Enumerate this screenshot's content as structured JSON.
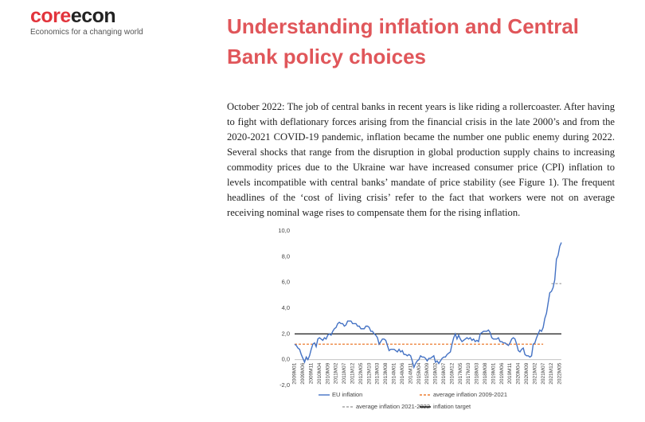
{
  "header": {
    "logo": {
      "part1": "core",
      "part2": "econ"
    },
    "tagline": "Economics for a changing world"
  },
  "article": {
    "title": "Understanding inflation and Central Bank policy choices",
    "paragraph": "October 2022: The job of central banks in recent years is like riding a rollercoaster. After having to fight with deflationary forces arising from the financial crisis in the late 2000’s and from the 2020-2021 COVID-19 pandemic, inflation became the number one public enemy during 2022. Several shocks that range from the disruption in global production supply chains to increasing commodity prices due to the Ukraine war have increased consumer price (CPI) inflation to levels incompatible with central banks’ mandate of price stability (see Figure 1). The frequent headlines of the ‘cost of living crisis’ refer to the fact that workers were not on average receiving nominal wage rises to compensate them for the rising inflation."
  },
  "chart_data": {
    "type": "line",
    "categories": [
      "2009M01",
      null,
      null,
      null,
      null,
      "2009M06",
      null,
      null,
      null,
      null,
      "2009M11",
      null,
      null,
      null,
      null,
      "2010M04",
      null,
      null,
      null,
      null,
      "2010M09",
      null,
      null,
      null,
      null,
      "2011M02",
      null,
      null,
      null,
      null,
      "2011M07",
      null,
      null,
      null,
      null,
      "2011M12",
      null,
      null,
      null,
      null,
      "2012M05",
      null,
      null,
      null,
      null,
      "2012M10",
      null,
      null,
      null,
      null,
      "2013M03",
      null,
      null,
      null,
      null,
      "2013M08",
      null,
      null,
      null,
      null,
      "2014M01",
      null,
      null,
      null,
      null,
      "2014M06",
      null,
      null,
      null,
      null,
      "2014M11",
      null,
      null,
      null,
      null,
      "2015M04",
      null,
      null,
      null,
      null,
      "2015M09",
      null,
      null,
      null,
      null,
      "2016M02",
      null,
      null,
      null,
      null,
      "2016M07",
      null,
      null,
      null,
      null,
      "2016M12",
      null,
      null,
      null,
      null,
      "2017M05",
      null,
      null,
      null,
      null,
      "2017M10",
      null,
      null,
      null,
      null,
      "2018M03",
      null,
      null,
      null,
      null,
      "2018M08",
      null,
      null,
      null,
      null,
      "2019M01",
      null,
      null,
      null,
      null,
      "2019M06",
      null,
      null,
      null,
      null,
      "2019M11",
      null,
      null,
      null,
      null,
      "2020M04",
      null,
      null,
      null,
      null,
      "2020M09",
      null,
      null,
      null,
      null,
      "2021M02",
      null,
      null,
      null,
      null,
      "2021M07",
      null,
      null,
      null,
      null,
      "2021M12",
      null,
      null,
      null,
      null,
      "2022M05",
      null
    ],
    "series": [
      {
        "name": "EU inflation",
        "color": "#4472c4",
        "values": [
          1.2,
          1.1,
          0.9,
          0.8,
          0.4,
          0.1,
          -0.2,
          0.2,
          0.0,
          0.3,
          0.8,
          1.2,
          1.3,
          1.0,
          1.6,
          1.7,
          1.6,
          1.5,
          1.7,
          1.6,
          1.9,
          2.0,
          1.9,
          2.2,
          2.4,
          2.5,
          2.8,
          2.9,
          2.8,
          2.8,
          2.6,
          2.7,
          3.0,
          3.0,
          3.0,
          2.8,
          2.8,
          2.8,
          2.6,
          2.6,
          2.4,
          2.4,
          2.4,
          2.6,
          2.6,
          2.5,
          2.2,
          2.2,
          2.0,
          1.9,
          1.7,
          1.2,
          1.4,
          1.6,
          1.6,
          1.5,
          1.1,
          0.7,
          0.8,
          0.8,
          0.8,
          0.7,
          0.6,
          0.8,
          0.6,
          0.7,
          0.4,
          0.4,
          0.3,
          0.4,
          0.3,
          -0.1,
          -0.6,
          -0.3,
          -0.1,
          0.0,
          0.3,
          0.2,
          0.2,
          0.1,
          -0.1,
          0.1,
          0.1,
          0.2,
          0.3,
          -0.2,
          -0.1,
          -0.3,
          -0.1,
          0.1,
          0.2,
          0.2,
          0.4,
          0.5,
          0.6,
          1.2,
          1.7,
          2.0,
          1.6,
          1.9,
          1.6,
          1.4,
          1.5,
          1.6,
          1.7,
          1.6,
          1.7,
          1.5,
          1.6,
          1.4,
          1.5,
          1.4,
          2.0,
          2.1,
          2.2,
          2.2,
          2.2,
          2.3,
          2.1,
          1.7,
          1.6,
          1.6,
          1.6,
          1.7,
          1.4,
          1.4,
          1.3,
          1.3,
          1.2,
          1.1,
          1.3,
          1.6,
          1.7,
          1.6,
          1.2,
          0.7,
          0.6,
          0.8,
          0.9,
          0.4,
          0.3,
          0.3,
          0.2,
          0.3,
          1.2,
          1.3,
          1.7,
          2.0,
          2.3,
          2.2,
          2.5,
          3.2,
          3.6,
          4.4,
          5.2,
          5.3,
          5.6,
          6.2,
          7.8,
          8.1,
          8.8,
          9.1
        ]
      }
    ],
    "reference_lines": [
      {
        "name": "average inflation 2009-2021",
        "color": "#ed7d31",
        "dashed": true,
        "value": 1.2,
        "from": "2009M01",
        "to": "2021M07"
      },
      {
        "name": "average inflation 2021-2022",
        "color": "#a5a5a5",
        "dashed": true,
        "value": 5.9,
        "from": "2021M12"
      },
      {
        "name": "inflation target",
        "color": "#000000",
        "dashed": false,
        "value": 2.0
      }
    ],
    "ylim": [
      -2,
      10
    ],
    "yticks": [
      {
        "value": -2,
        "label": "-2,0"
      },
      {
        "value": 0,
        "label": "0,0"
      },
      {
        "value": 2,
        "label": "2,0"
      },
      {
        "value": 4,
        "label": "4,0"
      },
      {
        "value": 6,
        "label": "6,0"
      },
      {
        "value": 8,
        "label": "8,0"
      },
      {
        "value": 10,
        "label": "10,0"
      }
    ]
  }
}
